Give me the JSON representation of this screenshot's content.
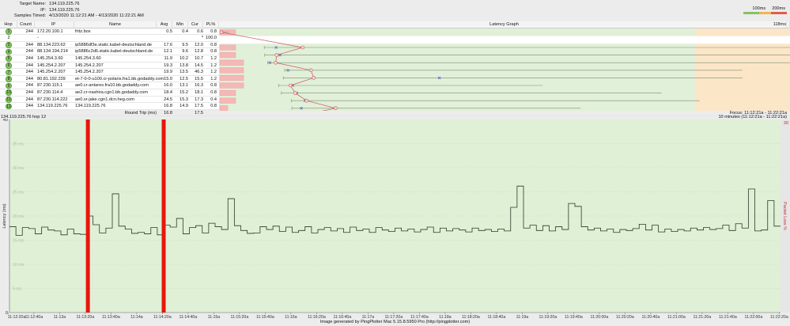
{
  "info": {
    "target_label": "Target Name:",
    "target": "134.119.225.76",
    "ip_label": "IP:",
    "ip": "134.119.225.76",
    "samples_label": "Samples Timed:",
    "samples": "4/13/2020 11:12:21 AM - 4/13/2020 11:22:21 AM"
  },
  "legend": {
    "l1": "100ms",
    "l2": "200ms",
    "colors": [
      "#8cc063",
      "#f3b453",
      "#e35b4b"
    ]
  },
  "table": {
    "headers": {
      "hop": "Hop",
      "count": "Count",
      "ip": "IP",
      "name": "Name",
      "avg": "Avg",
      "min": "Min",
      "cur": "Cur",
      "pl": "PL%",
      "graph": "Latency Graph"
    },
    "scale_max": "118ms",
    "rows": [
      {
        "hop": "1",
        "count": "244",
        "ip": "172.20.100.1",
        "name": "fritz.box",
        "avg": "0.5",
        "min": "0.4",
        "cur": "0.6",
        "pl": "0.8",
        "max_ms": 2
      },
      {
        "hop": "2",
        "count": "",
        "ip": "-",
        "name": "",
        "avg": "",
        "min": "",
        "cur": "*",
        "pl": "100.0"
      },
      {
        "hop": "3",
        "count": "244",
        "ip": "88.134.223.62",
        "name": "ip5886df3e.static.kabel-deutschland.de",
        "avg": "17.6",
        "min": "9.5",
        "cur": "12.0",
        "pl": "0.8",
        "max_ms": 120
      },
      {
        "hop": "4",
        "count": "244",
        "ip": "88.134.194.214",
        "name": "ip5886c2d6.static.kabel-deutschland.de",
        "avg": "12.1",
        "min": "9.6",
        "cur": "12.8",
        "pl": "0.8",
        "max_ms": 120
      },
      {
        "hop": "5",
        "count": "244",
        "ip": "145.254.3.60",
        "name": "145.254.3.60",
        "avg": "11.9",
        "min": "10.2",
        "cur": "10.7",
        "pl": "1.2",
        "max_ms": 120
      },
      {
        "hop": "6",
        "count": "244",
        "ip": "145.254.2.207",
        "name": "145.254.2.207",
        "avg": "19.3",
        "min": "13.8",
        "cur": "14.5",
        "pl": "1.2",
        "max_ms": 110
      },
      {
        "hop": "7",
        "count": "244",
        "ip": "145.254.2.207",
        "name": "145.254.2.207",
        "avg": "19.9",
        "min": "13.5",
        "cur": "46.3",
        "pl": "1.2",
        "max_ms": 110
      },
      {
        "hop": "8",
        "count": "244",
        "ip": "80.81.192.239",
        "name": "et-7-0-0-u100.cr-polaris.fra1.bb.godaddy.com",
        "avg": "15.0",
        "min": "12.5",
        "cur": "15.5",
        "pl": "1.2",
        "max_ms": 68
      },
      {
        "hop": "9",
        "count": "244",
        "ip": "87.230.115.1",
        "name": "ae0.cr-antares.fra10.bb.godaddy.com",
        "avg": "16.0",
        "min": "13.1",
        "cur": "16.3",
        "pl": "0.8",
        "max_ms": 93
      },
      {
        "hop": "10",
        "count": "244",
        "ip": "87.230.114.4",
        "name": "ae2.cr-nashira.cgn1.bb.godaddy.com",
        "avg": "18.4",
        "min": "15.2",
        "cur": "18.1",
        "pl": "0.8",
        "max_ms": 101
      },
      {
        "hop": "11",
        "count": "244",
        "ip": "87.230.114.222",
        "name": "ae0.sr-jake.cgn1.dcn.heg.com",
        "avg": "24.5",
        "min": "15.3",
        "cur": "17.3",
        "pl": "0.4",
        "max_ms": 76
      },
      {
        "hop": "12",
        "count": "244",
        "ip": "134.119.225.76",
        "name": "134.119.225.76",
        "avg": "16.8",
        "min": "14.9",
        "cur": "17.5",
        "pl": "0.8",
        "max_ms": 77
      }
    ],
    "round_trip": {
      "label": "Round Trip (ms)",
      "avg": "16.8",
      "cur": "17.5"
    }
  },
  "timeline": {
    "title": "134.119.225.76 hop 12",
    "focus": "Focus: 11:12:21a - 11:22:21a",
    "range": "10 minutes (11:12:21a - 11:22:21a)",
    "right_max": "30",
    "right_label": "Packet Loss %",
    "footer": "Image generated by PingPlotter Mac 5.15.8.5950 Pro (http://pingplotter.com)"
  },
  "chart_data": {
    "type": "line",
    "ylabel": "Latency (ms)",
    "ylim": [
      0,
      40
    ],
    "y_ticks": [
      "0",
      "5 ms",
      "10 ms",
      "15 ms",
      "20 ms",
      "25 ms",
      "30 ms",
      "35 ms",
      "40"
    ],
    "start_time": "11:12:21",
    "interval_s": 5,
    "x_ticks": [
      "11:12:20a",
      "11:12:40a",
      "11:13a",
      "11:13:20a",
      "11:13:40a",
      "11:14a",
      "11:14:20a",
      "11:14:40a",
      "11:15a",
      "11:15:20a",
      "11:15:40a",
      "11:16a",
      "11:16:20a",
      "11:16:40a",
      "11:17a",
      "11:17:20a",
      "11:17:40a",
      "11:18a",
      "11:18:20a",
      "11:18:40a",
      "11:19a",
      "11:19:20a",
      "11:19:40a",
      "11:20:00a",
      "11:20:20a",
      "11:20:40a",
      "11:21:00a",
      "11:21:20a",
      "11:21:40a",
      "11:22:00a",
      "11:22:20a"
    ],
    "loss_times": [
      "11:13:22",
      "11:14:21"
    ],
    "loss_color": "#e8160c",
    "bg_color": "#dff0d6",
    "values": [
      17.8,
      16.0,
      17.6,
      17.4,
      16.3,
      17.7,
      17.1,
      16.9,
      16.1,
      17.3,
      16.3,
      16.2,
      20.0,
      18.2,
      16.5,
      17.5,
      24.6,
      17.9,
      17.3,
      16.4,
      16.6,
      16.3,
      17.6,
      16.1,
      18.1,
      17.7,
      19.5,
      16.3,
      17.6,
      18.0,
      16.5,
      18.5,
      17.8,
      17.2,
      23.6,
      18.0,
      17.0,
      16.4,
      16.5,
      17.8,
      17.2,
      17.9,
      16.8,
      17.7,
      16.6,
      17.0,
      17.8,
      16.5,
      17.2,
      17.6,
      16.9,
      17.4,
      16.6,
      17.7,
      17.0,
      17.3,
      16.6,
      17.6,
      17.1,
      16.8,
      17.5,
      16.9,
      17.3,
      16.7,
      17.2,
      17.7,
      16.6,
      17.5,
      16.9,
      17.4,
      17.1,
      16.7,
      17.5,
      17.0,
      17.2,
      16.8,
      17.3,
      16.9,
      21.8,
      26.2,
      17.5,
      18.1,
      17.0,
      18.0,
      16.9,
      17.8,
      17.2,
      22.6,
      22.0,
      17.8,
      17.1,
      17.5,
      16.9,
      17.3,
      16.6,
      17.2,
      17.0,
      17.4,
      18.3,
      17.1,
      18.1,
      16.7,
      17.3,
      16.8,
      17.2,
      16.9,
      17.5,
      17.1,
      17.6,
      17.2,
      17.4,
      18.1,
      17.0,
      18.4,
      17.5,
      25.6,
      16.9,
      17.1,
      23.2,
      17.9
    ]
  }
}
